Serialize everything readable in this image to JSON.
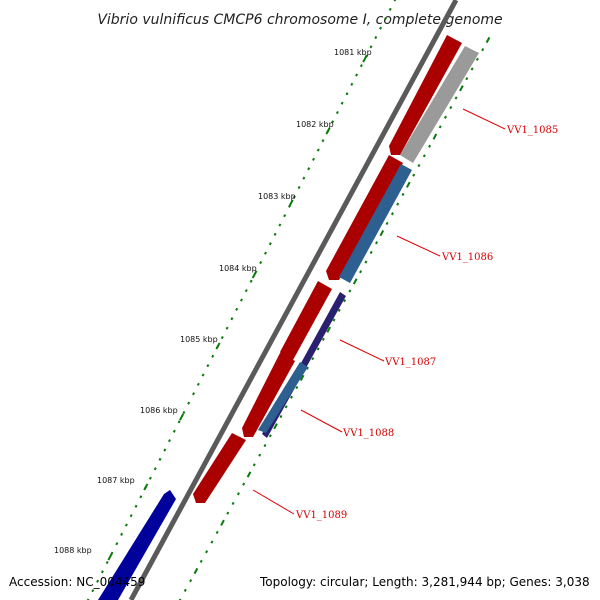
{
  "title": "Vibrio vulnificus CMCP6 chromosome I, complete genome",
  "footer": {
    "accession": "Accession: NC_004459",
    "info": "Topology: circular; Length: 3,281,944 bp; Genes: 3,038"
  },
  "scale_ticks": [
    "1081 kbp",
    "1082 kbp",
    "1083 kbp",
    "1084 kbp",
    "1085 kbp",
    "1086 kbp",
    "1087 kbp",
    "1088 kbp"
  ],
  "gene_labels": [
    "VV1_1085",
    "VV1_1086",
    "VV1_1087",
    "VV1_1088",
    "VV1_1089"
  ],
  "colors": {
    "forward_cds": "#ff0000",
    "blue_feature": "#0000ee",
    "gray_feature": "#c8c8c8",
    "steelblue_feature": "#4a86c0",
    "purple_feature": "#4a3d96",
    "backbone": "#777777",
    "tick_marks": "#0a7a0a",
    "label_text": "#d40000"
  }
}
